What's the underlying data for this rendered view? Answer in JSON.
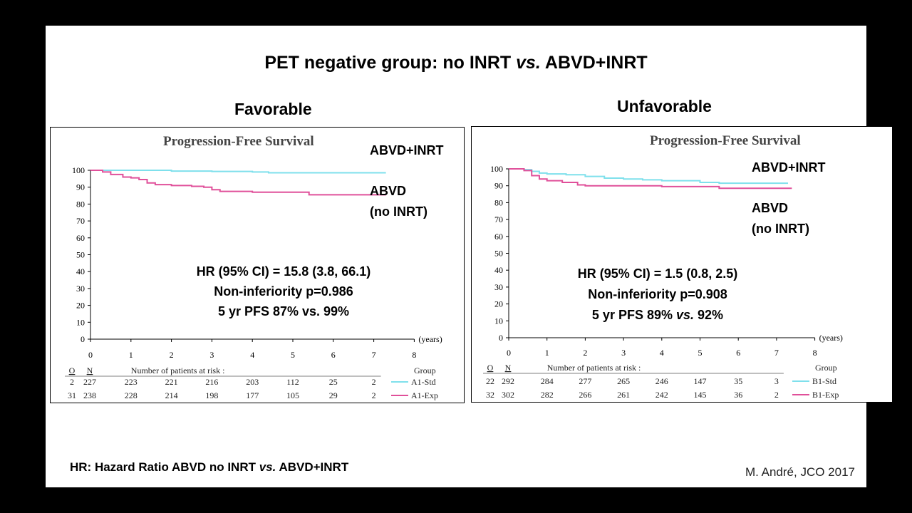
{
  "slide": {
    "title_pre": "PET negative group: no INRT ",
    "title_vs": "vs.",
    "title_post": " ABVD+INRT",
    "footnote_pre": "HR: Hazard Ratio ABVD no INRT ",
    "footnote_vs": "vs.",
    "footnote_post": " ABVD+INRT",
    "citation": "M. André, JCO 2017"
  },
  "chart_data": [
    {
      "type": "line",
      "group_title": "Favorable",
      "title": "Progression-Free Survival",
      "xlabel": "(years)",
      "xlim": [
        0,
        8
      ],
      "ylim": [
        0,
        100
      ],
      "x_ticks": [
        "0",
        "1",
        "2",
        "3",
        "4",
        "5",
        "6",
        "7",
        "8"
      ],
      "y_ticks": [
        "0",
        "10",
        "20",
        "30",
        "40",
        "50",
        "60",
        "70",
        "80",
        "90",
        "100"
      ],
      "colors": {
        "std": "#7fe0ec",
        "exp": "#e0509a"
      },
      "series": [
        {
          "name": "A1-Std",
          "x": [
            0,
            0.5,
            1,
            2,
            3,
            4,
            4.4,
            5,
            6,
            7,
            7.3
          ],
          "y": [
            100,
            100,
            100,
            99.5,
            99.3,
            99,
            98.5,
            98.5,
            98.5,
            98.5,
            98.5
          ]
        },
        {
          "name": "A1-Exp",
          "x": [
            0,
            0.3,
            0.5,
            0.8,
            1,
            1.2,
            1.4,
            1.6,
            2,
            2.5,
            2.8,
            3,
            3.2,
            3.5,
            4,
            4.5,
            5,
            5.4,
            6,
            6.5,
            7,
            7.3
          ],
          "y": [
            100,
            99,
            97.5,
            96,
            95.5,
            94.5,
            92.5,
            91.5,
            91,
            90.5,
            90,
            88.5,
            87.5,
            87.5,
            87,
            87,
            87,
            85.5,
            85.5,
            85.5,
            85.5,
            85.5
          ]
        }
      ],
      "annotations": {
        "top_label": "ABVD+INRT",
        "bottom_label_1": "ABVD",
        "bottom_label_2": "(no INRT)",
        "hr": "HR (95% CI) = 15.8 (3.8, 66.1)",
        "ni": "Non-inferiority p=0.986",
        "pfs_pre": "5 yr PFS 87% vs. 99%",
        "pfs_vs": "",
        "pfs_post": ""
      },
      "risk_table": {
        "col_o": "O",
        "col_n": "N",
        "header": "Number of patients at risk :",
        "group_header": "Group",
        "rows": [
          {
            "o": "2",
            "n": "227",
            "values": [
              "223",
              "221",
              "216",
              "203",
              "112",
              "25",
              "2"
            ],
            "group": "A1-Std"
          },
          {
            "o": "31",
            "n": "238",
            "values": [
              "228",
              "214",
              "198",
              "177",
              "105",
              "29",
              "2"
            ],
            "group": "A1-Exp"
          }
        ]
      }
    },
    {
      "type": "line",
      "group_title": "Unfavorable",
      "title": "Progression-Free Survival",
      "xlabel": "(years)",
      "xlim": [
        0,
        8
      ],
      "ylim": [
        0,
        100
      ],
      "x_ticks": [
        "0",
        "1",
        "2",
        "3",
        "4",
        "5",
        "6",
        "7",
        "8"
      ],
      "y_ticks": [
        "0",
        "10",
        "20",
        "30",
        "40",
        "50",
        "60",
        "70",
        "80",
        "90",
        "100"
      ],
      "colors": {
        "std": "#7fe0ec",
        "exp": "#e0509a"
      },
      "series": [
        {
          "name": "B1-Std",
          "x": [
            0,
            0.4,
            0.6,
            0.8,
            1,
            1.5,
            2,
            2.5,
            3,
            3.5,
            4,
            4.5,
            5,
            5.5,
            6,
            7,
            7.3
          ],
          "y": [
            100,
            99.5,
            98.5,
            97.5,
            97,
            96.5,
            95.5,
            94.5,
            94,
            93.5,
            93,
            93,
            92,
            91.5,
            91.5,
            91.5,
            91.5
          ]
        },
        {
          "name": "B1-Exp",
          "x": [
            0,
            0.4,
            0.6,
            0.8,
            1,
            1.4,
            1.8,
            2,
            3,
            4,
            5,
            5.5,
            6,
            7,
            7.4
          ],
          "y": [
            100,
            99,
            96,
            94,
            93,
            92,
            90.5,
            90,
            90,
            89.5,
            89.5,
            88.5,
            88.5,
            88.5,
            88.5
          ]
        }
      ],
      "annotations": {
        "top_label": "ABVD+INRT",
        "bottom_label_1": "ABVD",
        "bottom_label_2": "(no INRT)",
        "hr": "HR (95% CI) = 1.5 (0.8, 2.5)",
        "ni": "Non-inferiority p=0.908",
        "pfs_pre": "5 yr PFS 89% ",
        "pfs_vs": "vs.",
        "pfs_post": " 92%"
      },
      "risk_table": {
        "col_o": "O",
        "col_n": "N",
        "header": "Number of patients at risk :",
        "group_header": "Group",
        "rows": [
          {
            "o": "22",
            "n": "292",
            "values": [
              "284",
              "277",
              "265",
              "246",
              "147",
              "35",
              "3"
            ],
            "group": "B1-Std"
          },
          {
            "o": "32",
            "n": "302",
            "values": [
              "282",
              "266",
              "261",
              "242",
              "145",
              "36",
              "2"
            ],
            "group": "B1-Exp"
          }
        ]
      }
    }
  ]
}
